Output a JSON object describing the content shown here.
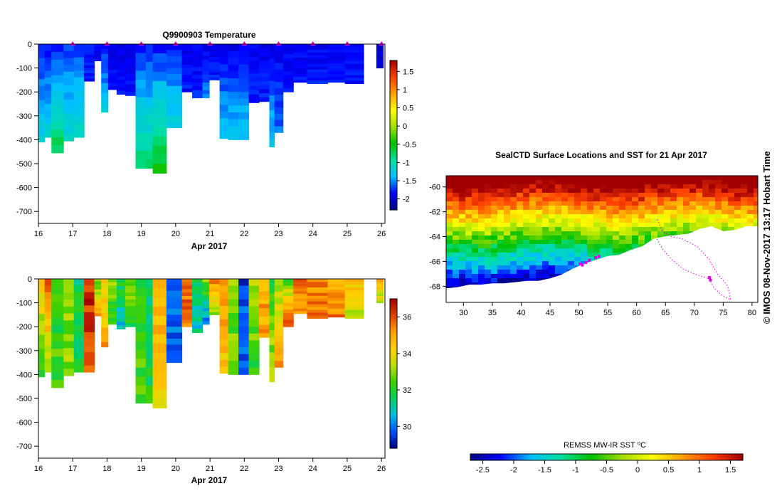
{
  "colors": {
    "temp_scale": [
      "#00007f",
      "#0000ff",
      "#00bfff",
      "#00e0a0",
      "#00c000",
      "#a0e000",
      "#ffff00",
      "#ffa000",
      "#ff4000",
      "#a00000"
    ],
    "sal_scale": [
      "#00007f",
      "#0050ff",
      "#00c0e0",
      "#00d060",
      "#40d000",
      "#c0e000",
      "#ffd000",
      "#ffa000",
      "#e04000",
      "#a00000"
    ],
    "track": "#e000e0",
    "land_mask": "#ffffff",
    "axis": "#000000"
  },
  "watermark": "© IMOS 08-Nov-2017 13:17 Hobart Time",
  "chart_data": [
    {
      "id": "temperature",
      "type": "heatmap",
      "title": "Q9900903  Temperature",
      "xlabel": "Apr 2017",
      "ylabel": "",
      "xlim": [
        16,
        26.1
      ],
      "ylim": [
        -750,
        0
      ],
      "xticks": [
        "16",
        "17",
        "18",
        "19",
        "20",
        "21",
        "22",
        "23",
        "24",
        "25",
        "26"
      ],
      "yticks": [
        "0",
        "-100",
        "-200",
        "-300",
        "-400",
        "-500",
        "-600",
        "-700"
      ],
      "colorbar": {
        "min": -2.3,
        "max": 1.8,
        "ticks": [
          "1.5",
          "1",
          "0.5",
          "0",
          "-0.5",
          "-1",
          "-1.5",
          "-2"
        ]
      },
      "surface_markers": [
        17,
        18,
        19,
        20,
        21,
        22,
        23,
        24,
        25,
        26
      ],
      "profiles": [
        {
          "x": 16.0,
          "w": 0.18,
          "depth": 410,
          "top": -1.8,
          "bottom": -1.2
        },
        {
          "x": 16.18,
          "w": 0.2,
          "depth": 390,
          "top": -1.8,
          "bottom": -1.2
        },
        {
          "x": 16.38,
          "w": 0.35,
          "depth": 455,
          "top": -1.8,
          "bottom": -0.7
        },
        {
          "x": 16.73,
          "w": 0.3,
          "depth": 405,
          "top": -1.7,
          "bottom": -1.1
        },
        {
          "x": 17.03,
          "w": 0.3,
          "depth": 390,
          "top": -1.7,
          "bottom": -1.1
        },
        {
          "x": 17.33,
          "w": 0.3,
          "depth": 155,
          "top": -1.8,
          "bottom": -1.8
        },
        {
          "x": 17.63,
          "w": 0.2,
          "depth": 70,
          "top": -1.9,
          "bottom": -1.9
        },
        {
          "x": 17.83,
          "w": 0.2,
          "depth": 285,
          "top": -1.8,
          "bottom": -1.3
        },
        {
          "x": 18.03,
          "w": 0.25,
          "depth": 190,
          "top": -1.9,
          "bottom": -1.8
        },
        {
          "x": 18.28,
          "w": 0.25,
          "depth": 210,
          "top": -1.9,
          "bottom": -1.8
        },
        {
          "x": 18.53,
          "w": 0.3,
          "depth": 215,
          "top": -1.9,
          "bottom": -1.8
        },
        {
          "x": 18.83,
          "w": 0.3,
          "depth": 520,
          "top": -1.8,
          "bottom": -0.8
        },
        {
          "x": 19.13,
          "w": 0.2,
          "depth": 520,
          "top": -1.8,
          "bottom": -0.8
        },
        {
          "x": 19.33,
          "w": 0.4,
          "depth": 540,
          "top": -1.8,
          "bottom": -0.5
        },
        {
          "x": 19.73,
          "w": 0.45,
          "depth": 350,
          "top": -1.8,
          "bottom": -1.2
        },
        {
          "x": 20.18,
          "w": 0.3,
          "depth": 200,
          "top": -1.9,
          "bottom": -1.8
        },
        {
          "x": 20.48,
          "w": 0.3,
          "depth": 225,
          "top": -1.9,
          "bottom": -1.8
        },
        {
          "x": 20.78,
          "w": 0.2,
          "depth": 225,
          "top": -1.9,
          "bottom": -1.5
        },
        {
          "x": 20.98,
          "w": 0.3,
          "depth": 150,
          "top": -1.9,
          "bottom": -1.8
        },
        {
          "x": 21.28,
          "w": 0.25,
          "depth": 395,
          "top": -1.9,
          "bottom": -1.3
        },
        {
          "x": 21.53,
          "w": 0.3,
          "depth": 400,
          "top": -1.9,
          "bottom": -1.3
        },
        {
          "x": 21.83,
          "w": 0.3,
          "depth": 400,
          "top": -1.9,
          "bottom": -1.3
        },
        {
          "x": 22.13,
          "w": 0.3,
          "depth": 245,
          "top": -1.9,
          "bottom": -1.8
        },
        {
          "x": 22.43,
          "w": 0.3,
          "depth": 240,
          "top": -1.9,
          "bottom": -1.8
        },
        {
          "x": 22.73,
          "w": 0.15,
          "depth": 430,
          "top": -1.9,
          "bottom": -1.3
        },
        {
          "x": 22.88,
          "w": 0.25,
          "depth": 370,
          "top": -1.9,
          "bottom": -1.6
        },
        {
          "x": 23.13,
          "w": 0.3,
          "depth": 200,
          "top": -1.9,
          "bottom": -1.8
        },
        {
          "x": 23.43,
          "w": 0.4,
          "depth": 160,
          "top": -1.9,
          "bottom": -1.8
        },
        {
          "x": 23.83,
          "w": 0.6,
          "depth": 165,
          "top": -1.9,
          "bottom": -1.8
        },
        {
          "x": 24.43,
          "w": 0.5,
          "depth": 160,
          "top": -1.9,
          "bottom": -1.8
        },
        {
          "x": 24.93,
          "w": 0.55,
          "depth": 165,
          "top": -1.9,
          "bottom": -1.8
        },
        {
          "x": 25.85,
          "w": 0.2,
          "depth": 100,
          "top": -2.0,
          "bottom": -2.0
        }
      ]
    },
    {
      "id": "salinity",
      "type": "heatmap",
      "title": "",
      "xlabel": "Apr 2017",
      "ylabel": "",
      "xlim": [
        16,
        26.1
      ],
      "ylim": [
        -750,
        0
      ],
      "xticks": [
        "16",
        "17",
        "18",
        "19",
        "20",
        "21",
        "22",
        "23",
        "24",
        "25",
        "26"
      ],
      "yticks": [
        "0",
        "-100",
        "-200",
        "-300",
        "-400",
        "-500",
        "-600",
        "-700"
      ],
      "colorbar": {
        "min": 28.8,
        "max": 37.0,
        "ticks": [
          "36",
          "34",
          "32",
          "30"
        ]
      },
      "profiles": [
        {
          "x": 16.0,
          "w": 0.18,
          "depth": 410,
          "top": 34.5,
          "bottom": 32.0
        },
        {
          "x": 16.18,
          "w": 0.2,
          "depth": 390,
          "top": 36.0,
          "bottom": 33.0
        },
        {
          "x": 16.38,
          "w": 0.35,
          "depth": 455,
          "top": 32.0,
          "bottom": 32.5
        },
        {
          "x": 16.73,
          "w": 0.3,
          "depth": 405,
          "top": 33.0,
          "bottom": 33.0
        },
        {
          "x": 17.03,
          "w": 0.3,
          "depth": 390,
          "top": 31.5,
          "bottom": 32.0
        },
        {
          "x": 17.33,
          "w": 0.3,
          "depth": 390,
          "top": 36.5,
          "bottom": 36.0
        },
        {
          "x": 17.63,
          "w": 0.2,
          "depth": 155,
          "top": 32.5,
          "bottom": 35.0
        },
        {
          "x": 17.83,
          "w": 0.2,
          "depth": 285,
          "top": 34.0,
          "bottom": 35.0
        },
        {
          "x": 18.03,
          "w": 0.25,
          "depth": 190,
          "top": 33.0,
          "bottom": 32.0
        },
        {
          "x": 18.28,
          "w": 0.25,
          "depth": 210,
          "top": 32.0,
          "bottom": 30.5
        },
        {
          "x": 18.53,
          "w": 0.3,
          "depth": 200,
          "top": 33.0,
          "bottom": 32.0
        },
        {
          "x": 18.83,
          "w": 0.3,
          "depth": 520,
          "top": 32.0,
          "bottom": 32.5
        },
        {
          "x": 19.13,
          "w": 0.2,
          "depth": 520,
          "top": 31.5,
          "bottom": 32.0
        },
        {
          "x": 19.33,
          "w": 0.4,
          "depth": 540,
          "top": 35.0,
          "bottom": 34.0
        },
        {
          "x": 19.73,
          "w": 0.45,
          "depth": 350,
          "top": 29.5,
          "bottom": 30.0
        },
        {
          "x": 20.18,
          "w": 0.3,
          "depth": 200,
          "top": 36.0,
          "bottom": 35.5
        },
        {
          "x": 20.48,
          "w": 0.3,
          "depth": 225,
          "top": 31.5,
          "bottom": 31.0
        },
        {
          "x": 20.78,
          "w": 0.2,
          "depth": 190,
          "top": 33.0,
          "bottom": 30.0
        },
        {
          "x": 20.98,
          "w": 0.3,
          "depth": 150,
          "top": 35.5,
          "bottom": 33.0
        },
        {
          "x": 21.28,
          "w": 0.25,
          "depth": 395,
          "top": 35.0,
          "bottom": 34.5
        },
        {
          "x": 21.53,
          "w": 0.3,
          "depth": 400,
          "top": 33.0,
          "bottom": 32.5
        },
        {
          "x": 21.83,
          "w": 0.3,
          "depth": 400,
          "top": 29.5,
          "bottom": 30.0
        },
        {
          "x": 22.13,
          "w": 0.3,
          "depth": 400,
          "top": 33.5,
          "bottom": 32.0
        },
        {
          "x": 22.43,
          "w": 0.3,
          "depth": 245,
          "top": 35.0,
          "bottom": 35.0
        },
        {
          "x": 22.73,
          "w": 0.15,
          "depth": 430,
          "top": 32.0,
          "bottom": 33.5
        },
        {
          "x": 22.88,
          "w": 0.25,
          "depth": 370,
          "top": 33.0,
          "bottom": 35.0
        },
        {
          "x": 23.13,
          "w": 0.3,
          "depth": 200,
          "top": 32.5,
          "bottom": 36.0
        },
        {
          "x": 23.43,
          "w": 0.4,
          "depth": 145,
          "top": 35.5,
          "bottom": 35.0
        },
        {
          "x": 23.83,
          "w": 0.6,
          "depth": 165,
          "top": 35.5,
          "bottom": 35.5
        },
        {
          "x": 24.43,
          "w": 0.5,
          "depth": 160,
          "top": 35.0,
          "bottom": 35.5
        },
        {
          "x": 24.93,
          "w": 0.55,
          "depth": 165,
          "top": 34.5,
          "bottom": 33.5
        },
        {
          "x": 25.85,
          "w": 0.2,
          "depth": 100,
          "top": 35.0,
          "bottom": 33.0
        }
      ]
    },
    {
      "id": "sst-map",
      "type": "heatmap",
      "title": "SealCTD Surface Locations and SST for 21 Apr 2017",
      "xlabel": "",
      "ylabel": "",
      "xlim": [
        27,
        81
      ],
      "ylim": [
        -69.3,
        -59.1
      ],
      "xticks": [
        "30",
        "35",
        "40",
        "45",
        "50",
        "55",
        "60",
        "65",
        "70",
        "75",
        "80"
      ],
      "yticks": [
        "-60",
        "-62",
        "-64",
        "-66",
        "-68"
      ],
      "colorbar": {
        "label": "REMSS MW-IR SST ⁰C",
        "min": -2.7,
        "max": 1.7,
        "ticks": [
          "-2.5",
          "-2",
          "-1.5",
          "-1",
          "-0.5",
          "0",
          "0.5",
          "1",
          "1.5"
        ]
      },
      "coastline": [
        [
          27,
          -68.2
        ],
        [
          29,
          -68.1
        ],
        [
          31,
          -67.9
        ],
        [
          33,
          -67.9
        ],
        [
          35,
          -67.8
        ],
        [
          37,
          -67.8
        ],
        [
          39,
          -67.7
        ],
        [
          41,
          -67.6
        ],
        [
          43,
          -67.6
        ],
        [
          45,
          -67.4
        ],
        [
          47,
          -67.1
        ],
        [
          49,
          -66.6
        ],
        [
          51,
          -66.2
        ],
        [
          53,
          -65.9
        ],
        [
          55,
          -65.6
        ],
        [
          57,
          -65.5
        ],
        [
          59,
          -65.1
        ],
        [
          61,
          -64.8
        ],
        [
          63,
          -64.2
        ],
        [
          65,
          -64.0
        ],
        [
          67,
          -63.9
        ],
        [
          69,
          -63.8
        ],
        [
          71,
          -63.4
        ],
        [
          73,
          -63.2
        ],
        [
          75,
          -63.6
        ],
        [
          77,
          -63.5
        ],
        [
          79,
          -63.2
        ],
        [
          81,
          -63.2
        ]
      ],
      "track": [
        [
          63.5,
          -64.2
        ],
        [
          64.5,
          -65.0
        ],
        [
          66,
          -65.8
        ],
        [
          68,
          -66.6
        ],
        [
          70,
          -67.0
        ],
        [
          72.5,
          -67.4
        ],
        [
          73.5,
          -68.2
        ],
        [
          75,
          -68.8
        ],
        [
          76.3,
          -69.1
        ],
        [
          75.8,
          -68.0
        ],
        [
          74,
          -67.0
        ],
        [
          72.5,
          -65.8
        ],
        [
          70.5,
          -64.8
        ],
        [
          68,
          -64.2
        ],
        [
          66,
          -64.0
        ],
        [
          64.5,
          -63.6
        ],
        [
          63.5,
          -62.5
        ]
      ],
      "surface_locations": [
        [
          50.2,
          -66.2
        ],
        [
          50.6,
          -66.3
        ],
        [
          51.2,
          -66.1
        ],
        [
          51.8,
          -65.9
        ],
        [
          52.9,
          -65.7
        ],
        [
          53.5,
          -65.6
        ],
        [
          72.6,
          -67.3
        ],
        [
          72.8,
          -67.5
        ]
      ]
    }
  ]
}
